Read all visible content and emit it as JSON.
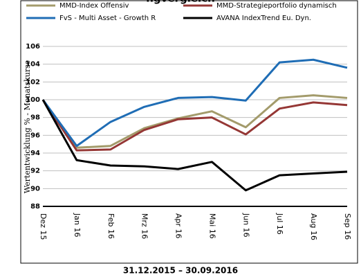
{
  "chart_data": {
    "type": "line",
    "title": "ngvergleich",
    "subtitle": "31.12.2015 – 30.09.2016",
    "y_label": "Wertentwicklung % - Monatskurse",
    "categories": [
      "Dez 15",
      "Jan 16",
      "Feb 16",
      "Mrz 16",
      "Apr 16",
      "Mai 16",
      "Jun 16",
      "Jul 16",
      "Aug 16",
      "Sep 16"
    ],
    "series": [
      {
        "name": "MMD-Index Offensiv",
        "color": "#a39b6b",
        "values": [
          100,
          94.6,
          94.8,
          96.8,
          97.9,
          98.7,
          96.9,
          100.2,
          100.5,
          100.2
        ]
      },
      {
        "name": "MMD-Strategieportfolio dynamisch",
        "color": "#953735",
        "values": [
          100,
          94.3,
          94.4,
          96.6,
          97.8,
          98.0,
          96.1,
          99.0,
          99.7,
          99.4
        ]
      },
      {
        "name": "FvS - Multi Asset - Growth R",
        "color": "#1f6db5",
        "values": [
          100,
          94.8,
          97.5,
          99.2,
          100.2,
          100.3,
          99.9,
          104.2,
          104.5,
          103.6
        ]
      },
      {
        "name": "AVANA IndexTrend Eu. Dyn.",
        "color": "#000000",
        "values": [
          100,
          93.2,
          92.6,
          92.5,
          92.2,
          93.0,
          89.8,
          91.5,
          91.7,
          91.9
        ]
      }
    ],
    "ylim": [
      88,
      106
    ],
    "yticks": [
      88,
      90,
      92,
      94,
      96,
      98,
      100,
      102,
      104,
      106
    ],
    "grid": true,
    "legend": "top"
  }
}
